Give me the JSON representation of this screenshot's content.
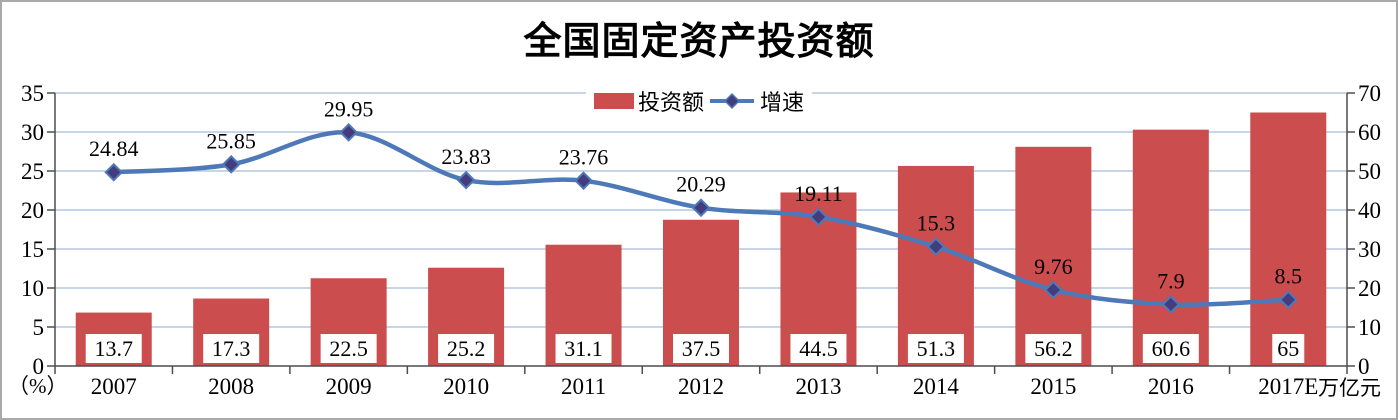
{
  "chart_data": {
    "type": "combo-bar-line",
    "title": "全国固定资产投资额",
    "categories": [
      "2007",
      "2008",
      "2009",
      "2010",
      "2011",
      "2012",
      "2013",
      "2014",
      "2015",
      "2016",
      "2017E"
    ],
    "series": [
      {
        "name": "投资额",
        "type": "bar",
        "axis": "right",
        "unit": "万亿元",
        "color": "#cb4d4d",
        "values": [
          13.7,
          17.3,
          22.5,
          25.2,
          31.1,
          37.5,
          44.5,
          51.3,
          56.2,
          60.6,
          65
        ]
      },
      {
        "name": "增速",
        "type": "line",
        "axis": "left",
        "unit": "%",
        "color": "#4e79b8",
        "marker": "diamond",
        "marker_color": "#433c7e",
        "values": [
          24.84,
          25.85,
          29.95,
          23.83,
          23.76,
          20.29,
          19.11,
          15.3,
          9.76,
          7.9,
          8.5
        ]
      }
    ],
    "left_axis": {
      "min": 0,
      "max": 35,
      "step": 5,
      "ticks": [
        0,
        5,
        10,
        15,
        20,
        25,
        30,
        35
      ],
      "unit_label": "（%）"
    },
    "right_axis": {
      "min": 0,
      "max": 70,
      "step": 10,
      "ticks": [
        0,
        10,
        20,
        30,
        40,
        50,
        60,
        70
      ],
      "unit_label": "万亿元"
    },
    "legend": {
      "position": "top-center",
      "entries": [
        "投资额",
        "增速"
      ]
    },
    "grid": true,
    "style": {
      "gridline_color": "#c6d5e8",
      "axis_color": "#4d4d4d",
      "bar_label_box_fill": "#ffffff",
      "text_color": "#000000",
      "frame_color": "#a9a9a9"
    }
  }
}
